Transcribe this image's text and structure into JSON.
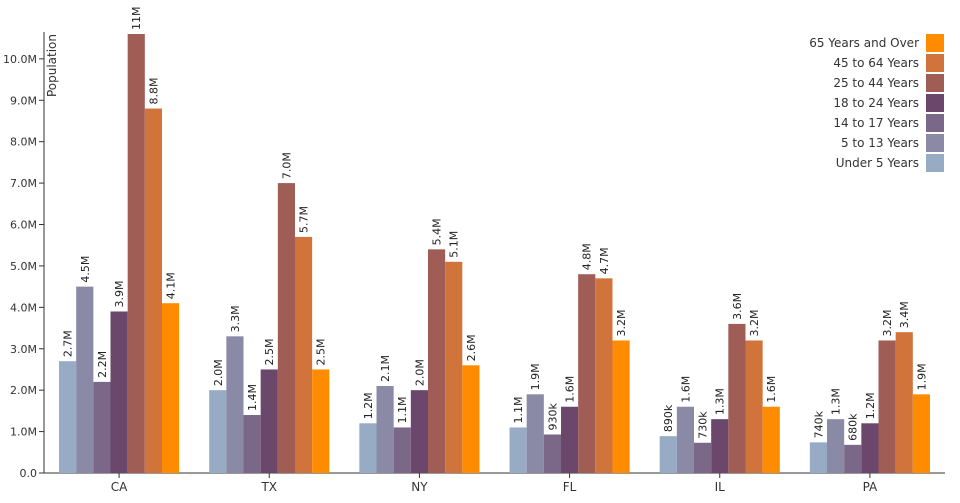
{
  "chart_data": {
    "type": "bar",
    "xlabel": "",
    "ylabel": "Population",
    "ylim": [
      0,
      10600000
    ],
    "yticks": [
      0,
      1000000,
      2000000,
      3000000,
      4000000,
      5000000,
      6000000,
      7000000,
      8000000,
      9000000,
      10000000
    ],
    "ytick_labels": [
      "0.0",
      "1.0M",
      "2.0M",
      "3.0M",
      "4.0M",
      "5.0M",
      "6.0M",
      "7.0M",
      "8.0M",
      "9.0M",
      "10.0M"
    ],
    "categories": [
      "CA",
      "TX",
      "NY",
      "FL",
      "IL",
      "PA"
    ],
    "legend_position": "top-right",
    "grid": false,
    "series": [
      {
        "name": "Under 5 Years",
        "color": "#98abc5",
        "values": [
          2700000,
          2000000,
          1200000,
          1100000,
          890000,
          740000
        ],
        "labels": [
          "2.7M",
          "2.0M",
          "1.2M",
          "1.1M",
          "890k",
          "740k"
        ]
      },
      {
        "name": "5 to 13 Years",
        "color": "#8a89a6",
        "values": [
          4500000,
          3300000,
          2100000,
          1900000,
          1600000,
          1300000
        ],
        "labels": [
          "4.5M",
          "3.3M",
          "2.1M",
          "1.9M",
          "1.6M",
          "1.3M"
        ]
      },
      {
        "name": "14 to 17 Years",
        "color": "#7b6888",
        "values": [
          2200000,
          1400000,
          1100000,
          930000,
          730000,
          680000
        ],
        "labels": [
          "2.2M",
          "1.4M",
          "1.1M",
          "930k",
          "730k",
          "680k"
        ]
      },
      {
        "name": "18 to 24 Years",
        "color": "#6b486b",
        "values": [
          3900000,
          2500000,
          2000000,
          1600000,
          1300000,
          1200000
        ],
        "labels": [
          "3.9M",
          "2.5M",
          "2.0M",
          "1.6M",
          "1.3M",
          "1.2M"
        ]
      },
      {
        "name": "25 to 44 Years",
        "color": "#a05d56",
        "values": [
          10600000,
          7000000,
          5400000,
          4800000,
          3600000,
          3200000
        ],
        "labels": [
          "11M",
          "7.0M",
          "5.4M",
          "4.8M",
          "3.6M",
          "3.2M"
        ]
      },
      {
        "name": "45 to 64 Years",
        "color": "#d0743c",
        "values": [
          8800000,
          5700000,
          5100000,
          4700000,
          3200000,
          3400000
        ],
        "labels": [
          "8.8M",
          "5.7M",
          "5.1M",
          "4.7M",
          "3.2M",
          "3.4M"
        ]
      },
      {
        "name": "65 Years and Over",
        "color": "#ff8c00",
        "values": [
          4100000,
          2500000,
          2600000,
          3200000,
          1600000,
          1900000
        ],
        "labels": [
          "4.1M",
          "2.5M",
          "2.6M",
          "3.2M",
          "1.6M",
          "1.9M"
        ]
      }
    ]
  }
}
